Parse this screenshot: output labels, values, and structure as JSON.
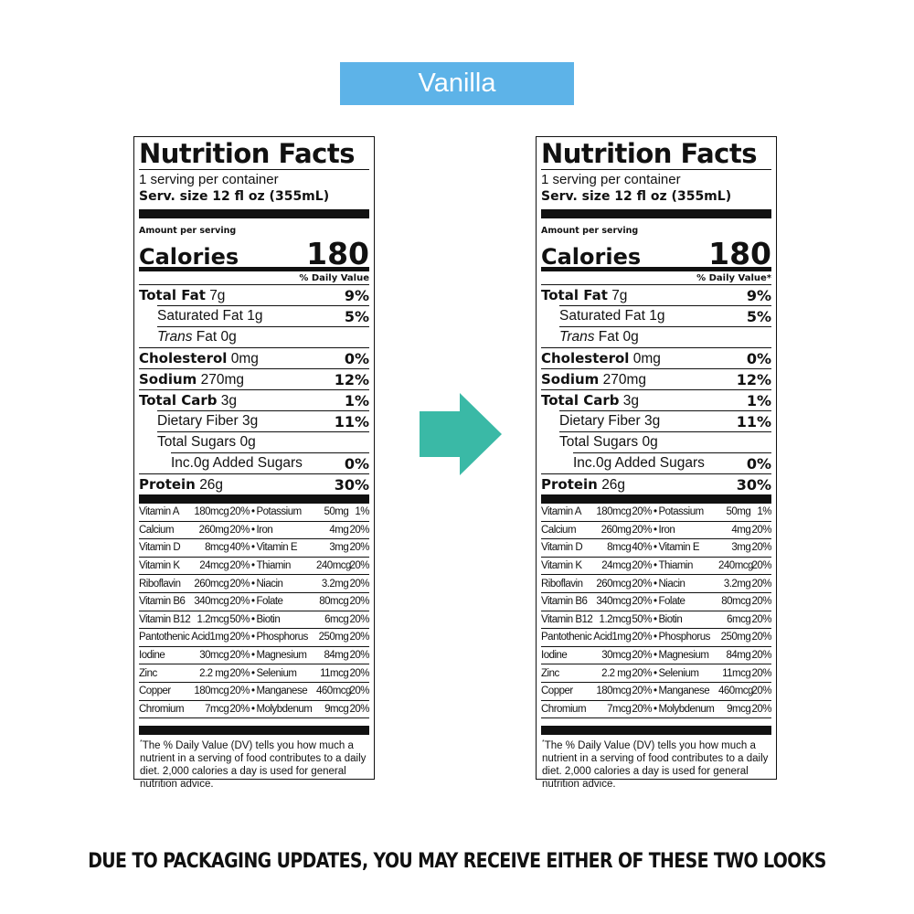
{
  "flavor": "Vanilla",
  "colors": {
    "banner": "#5db3e8",
    "arrow": "#3ab9a6"
  },
  "arrow_icon": "arrow-right",
  "labels": [
    {
      "title": "Nutrition Facts",
      "servings": "1 serving per container",
      "serving_size": "Serv. size  12 fl oz (355mL)",
      "amount_per_serving": "Amount per serving",
      "calories_label": "Calories",
      "calories_value": "180",
      "daily_value_header": "% Daily Value",
      "nutrients": [
        {
          "name": "Total Fat",
          "amount": "7g",
          "dv": "9%"
        },
        {
          "name": "Saturated Fat 1g",
          "amount": "",
          "dv": "5%"
        },
        {
          "name": "Trans",
          "amount": "Fat 0g",
          "dv": ""
        },
        {
          "name": "Cholesterol",
          "amount": "0mg",
          "dv": "0%"
        },
        {
          "name": "Sodium",
          "amount": "270mg",
          "dv": "12%"
        },
        {
          "name": "Total Carb",
          "amount": "3g",
          "dv": "1%"
        },
        {
          "name": "Dietary Fiber 3g",
          "amount": "",
          "dv": "11%"
        },
        {
          "name": "Total Sugars 0g",
          "amount": "",
          "dv": ""
        },
        {
          "name": "Inc.0g Added Sugars",
          "amount": "",
          "dv": "0%"
        },
        {
          "name": "Protein",
          "amount": "26g",
          "dv": "30%"
        }
      ],
      "vitamins": [
        [
          "Vitamin A",
          "180mcg",
          "20%",
          "Potassium",
          "50mg",
          "1%"
        ],
        [
          "Calcium",
          "260mg",
          "20%",
          "Iron",
          "4mg",
          "20%"
        ],
        [
          "Vitamin D",
          "8mcg",
          "40%",
          "Vitamin E",
          "3mg",
          "20%"
        ],
        [
          "Vitamin K",
          "24mcg",
          "20%",
          "Thiamin",
          "240mcg",
          "20%"
        ],
        [
          "Riboflavin",
          "260mcg",
          "20%",
          "Niacin",
          "3.2mg",
          "20%"
        ],
        [
          "Vitamin B6",
          "340mcg",
          "20%",
          "Folate",
          "80mcg",
          "20%"
        ],
        [
          "Vitamin B12",
          "1.2mcg",
          "50%",
          "Biotin",
          "6mcg",
          "20%"
        ],
        [
          "Pantothenic Acid",
          "1mg",
          "20%",
          "Phosphorus",
          "250mg",
          "20%"
        ],
        [
          "Iodine",
          "30mcg",
          "20%",
          "Magnesium",
          "84mg",
          "20%"
        ],
        [
          "Zinc",
          "2.2 mg",
          "20%",
          "Selenium",
          "11mcg",
          "20%"
        ],
        [
          "Copper",
          "180mcg",
          "20%",
          "Manganese",
          "460mcg",
          "20%"
        ],
        [
          "Chromium",
          "7mcg",
          "20%",
          "Molybdenum",
          "9mcg",
          "20%"
        ]
      ],
      "footnote_mark": "*",
      "footnote": "The % Daily Value (DV) tells you how much a nutrient in a serving of food contributes to a daily diet. 2,000 calories a day is used for general nutrition advice."
    },
    {
      "title": "Nutrition Facts",
      "servings": "1 serving per container",
      "serving_size": "Serv. size  12 fl oz (355mL)",
      "amount_per_serving": "Amount per serving",
      "calories_label": "Calories",
      "calories_value": "180",
      "daily_value_header": "% Daily Value*",
      "nutrients": [
        {
          "name": "Total Fat",
          "amount": "7g",
          "dv": "9%"
        },
        {
          "name": "Saturated Fat 1g",
          "amount": "",
          "dv": "5%"
        },
        {
          "name": "Trans",
          "amount": "Fat 0g",
          "dv": ""
        },
        {
          "name": "Cholesterol",
          "amount": "0mg",
          "dv": "0%"
        },
        {
          "name": "Sodium",
          "amount": "270mg",
          "dv": "12%"
        },
        {
          "name": "Total Carb",
          "amount": "3g",
          "dv": "1%"
        },
        {
          "name": "Dietary Fiber 3g",
          "amount": "",
          "dv": "11%"
        },
        {
          "name": "Total Sugars 0g",
          "amount": "",
          "dv": ""
        },
        {
          "name": "Inc.0g Added Sugars",
          "amount": "",
          "dv": "0%"
        },
        {
          "name": "Protein",
          "amount": "26g",
          "dv": "30%"
        }
      ],
      "vitamins": [
        [
          "Vitamin A",
          "180mcg",
          "20%",
          "Potassium",
          "50mg",
          "1%"
        ],
        [
          "Calcium",
          "260mg",
          "20%",
          "Iron",
          "4mg",
          "20%"
        ],
        [
          "Vitamin D",
          "8mcg",
          "40%",
          "Vitamin E",
          "3mg",
          "20%"
        ],
        [
          "Vitamin K",
          "24mcg",
          "20%",
          "Thiamin",
          "240mcg",
          "20%"
        ],
        [
          "Riboflavin",
          "260mcg",
          "20%",
          "Niacin",
          "3.2mg",
          "20%"
        ],
        [
          "Vitamin B6",
          "340mcg",
          "20%",
          "Folate",
          "80mcg",
          "20%"
        ],
        [
          "Vitamin B12",
          "1.2mcg",
          "50%",
          "Biotin",
          "6mcg",
          "20%"
        ],
        [
          "Pantothenic Acid",
          "1mg",
          "20%",
          "Phosphorus",
          "250mg",
          "20%"
        ],
        [
          "Iodine",
          "30mcg",
          "20%",
          "Magnesium",
          "84mg",
          "20%"
        ],
        [
          "Zinc",
          "2.2 mg",
          "20%",
          "Selenium",
          "11mcg",
          "20%"
        ],
        [
          "Copper",
          "180mcg",
          "20%",
          "Manganese",
          "460mcg",
          "20%"
        ],
        [
          "Chromium",
          "7mcg",
          "20%",
          "Molybdenum",
          "9mcg",
          "20%"
        ]
      ],
      "footnote_mark": "*",
      "footnote": "The % Daily Value (DV) tells you how much a nutrient in a serving of food contributes to a daily diet. 2,000 calories a day is used for general nutrition advice."
    }
  ],
  "disclaimer": "DUE TO PACKAGING UPDATES, YOU MAY RECEIVE EITHER OF THESE TWO LOOKS"
}
